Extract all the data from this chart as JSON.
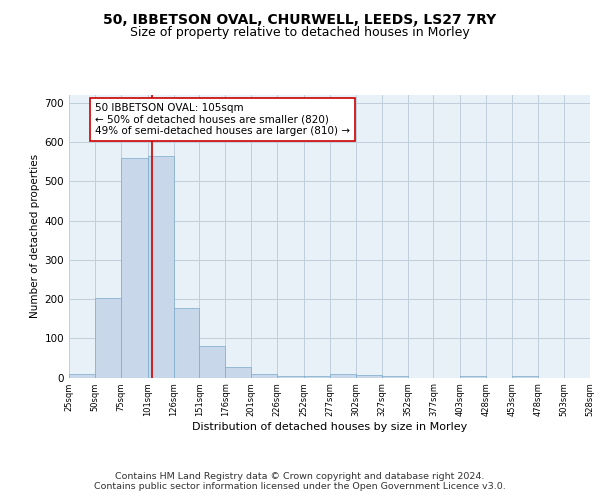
{
  "title_line1": "50, IBBETSON OVAL, CHURWELL, LEEDS, LS27 7RY",
  "title_line2": "Size of property relative to detached houses in Morley",
  "xlabel": "Distribution of detached houses by size in Morley",
  "ylabel": "Number of detached properties",
  "bar_color": "#c8d8ea",
  "bar_edge_color": "#7aaac8",
  "grid_color": "#c0cedd",
  "background_color": "#e8f0f8",
  "red_line_x": 105,
  "annotation_lines": [
    "50 IBBETSON OVAL: 105sqm",
    "← 50% of detached houses are smaller (820)",
    "49% of semi-detached houses are larger (810) →"
  ],
  "bin_edges": [
    25,
    50,
    75,
    101,
    126,
    151,
    176,
    201,
    226,
    252,
    277,
    302,
    327,
    352,
    377,
    403,
    428,
    453,
    478,
    503,
    528
  ],
  "bar_heights": [
    10,
    202,
    560,
    565,
    178,
    80,
    28,
    10,
    5,
    5,
    8,
    7,
    5,
    0,
    0,
    5,
    0,
    5,
    0,
    0
  ],
  "ylim": [
    0,
    720
  ],
  "yticks": [
    0,
    100,
    200,
    300,
    400,
    500,
    600,
    700
  ],
  "footnote_line1": "Contains HM Land Registry data © Crown copyright and database right 2024.",
  "footnote_line2": "Contains public sector information licensed under the Open Government Licence v3.0.",
  "title_fontsize": 10,
  "subtitle_fontsize": 9,
  "annotation_fontsize": 7.5,
  "footnote_fontsize": 6.8,
  "ylabel_fontsize": 7.5,
  "xlabel_fontsize": 8,
  "xtick_fontsize": 6,
  "ytick_fontsize": 7.5
}
